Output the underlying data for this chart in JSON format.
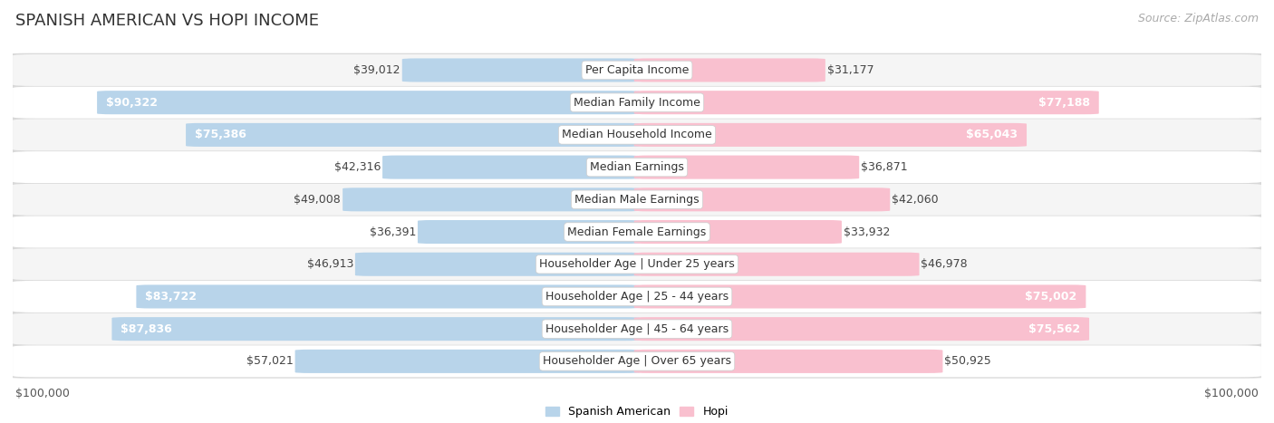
{
  "title": "SPANISH AMERICAN VS HOPI INCOME",
  "source": "Source: ZipAtlas.com",
  "max_value": 100000,
  "categories": [
    "Per Capita Income",
    "Median Family Income",
    "Median Household Income",
    "Median Earnings",
    "Median Male Earnings",
    "Median Female Earnings",
    "Householder Age | Under 25 years",
    "Householder Age | 25 - 44 years",
    "Householder Age | 45 - 64 years",
    "Householder Age | Over 65 years"
  ],
  "spanish_american": [
    39012,
    90322,
    75386,
    42316,
    49008,
    36391,
    46913,
    83722,
    87836,
    57021
  ],
  "hopi": [
    31177,
    77188,
    65043,
    36871,
    42060,
    33932,
    46978,
    75002,
    75562,
    50925
  ],
  "spanish_american_labels": [
    "$39,012",
    "$90,322",
    "$75,386",
    "$42,316",
    "$49,008",
    "$36,391",
    "$46,913",
    "$83,722",
    "$87,836",
    "$57,021"
  ],
  "hopi_labels": [
    "$31,177",
    "$77,188",
    "$65,043",
    "$36,871",
    "$42,060",
    "$33,932",
    "$46,978",
    "$75,002",
    "$75,562",
    "$50,925"
  ],
  "blue_light": "#b8d4ea",
  "blue_dark": "#5b9bd5",
  "pink_light": "#f9c0cf",
  "pink_dark": "#f06292",
  "bg_row_even": "#f5f5f5",
  "bg_row_odd": "#ffffff",
  "row_border": "#d8d8d8",
  "bar_height": 0.72,
  "title_fontsize": 13,
  "label_fontsize": 9,
  "axis_label_fontsize": 9,
  "legend_fontsize": 9,
  "source_fontsize": 9,
  "inside_label_threshold": 60000
}
